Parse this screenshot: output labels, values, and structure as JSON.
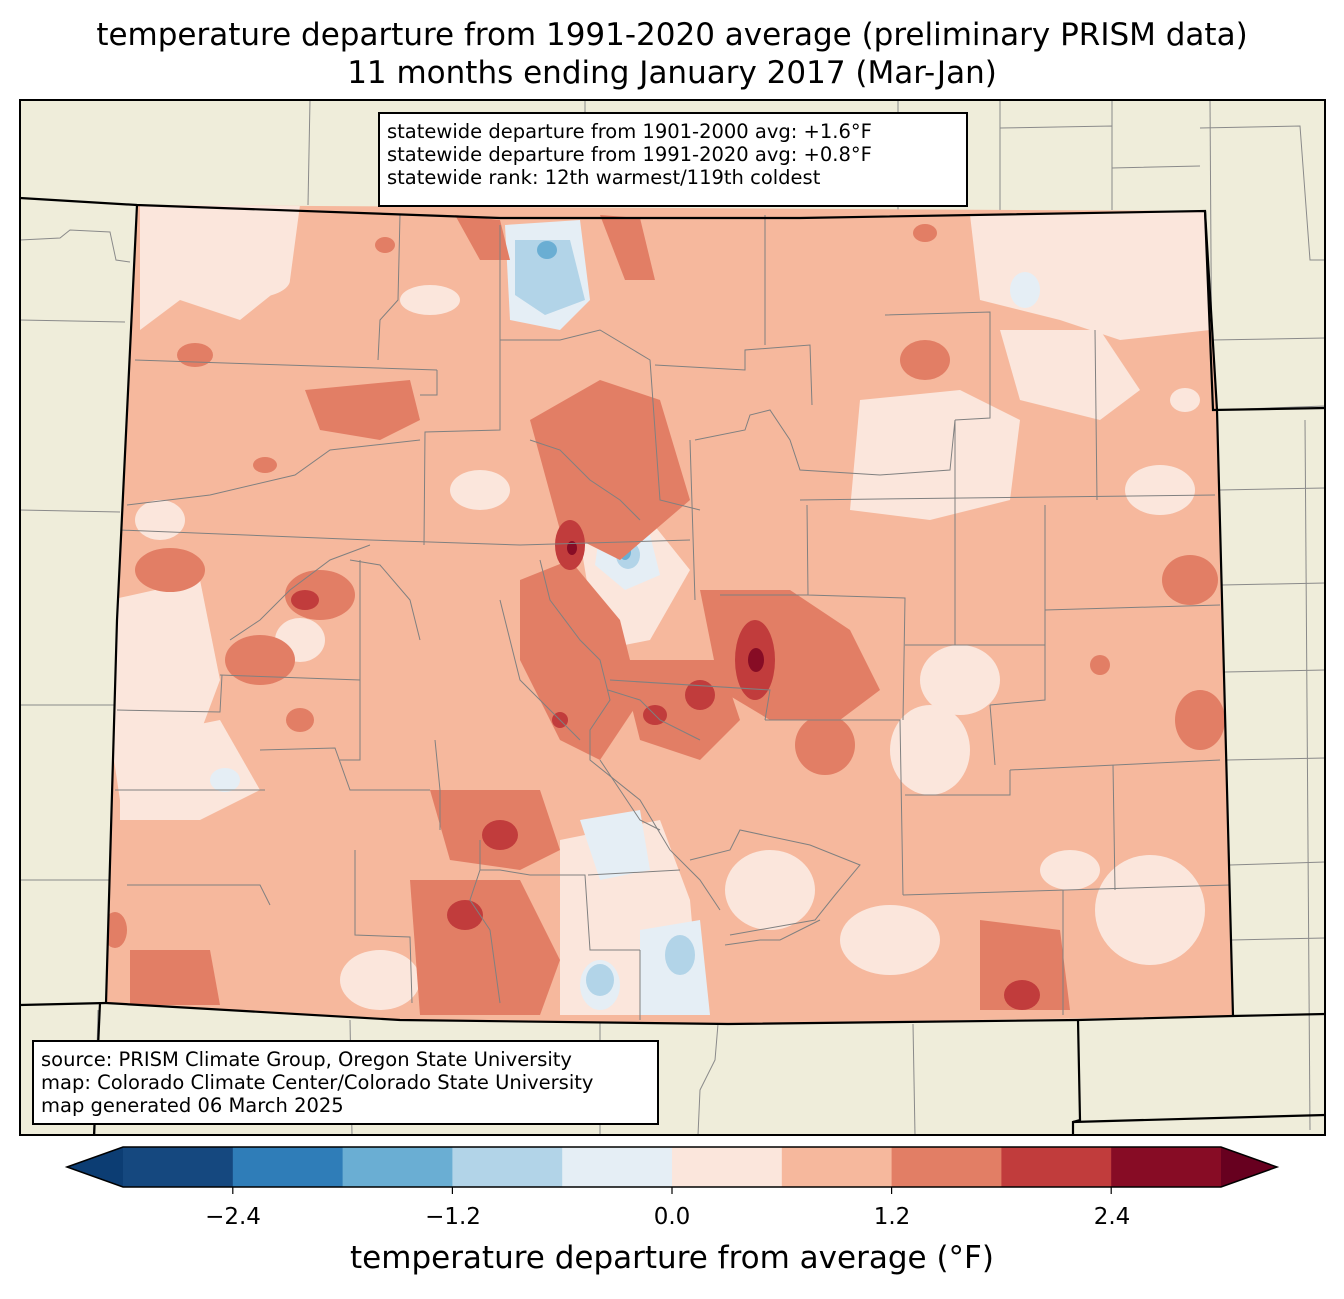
{
  "title": {
    "line1": "temperature departure from 1991-2020 average (preliminary PRISM data)",
    "line2": "11 months ending January 2017 (Mar-Jan)"
  },
  "stats": {
    "line1": "statewide departure from 1901-2000 avg: +1.6°F",
    "line2": "statewide departure from 1991-2020 avg: +0.8°F",
    "line3": "statewide rank: 12th warmest/119th coldest"
  },
  "source": {
    "line1": "source: PRISM Climate Group, Oregon State University",
    "line2": "map: Colorado Climate Center/Colorado State University",
    "line3": "map generated 06 March 2025"
  },
  "colorbar": {
    "label": "temperature departure from average (°F)",
    "ticks": [
      "−2.4",
      "−1.2",
      "0.0",
      "1.2",
      "2.4"
    ],
    "levels": [
      -3.0,
      -2.4,
      -1.8,
      -1.2,
      -0.6,
      0.0,
      0.6,
      1.2,
      1.8,
      2.4,
      3.0
    ],
    "colors": [
      "#0c3d73",
      "#15487f",
      "#2f7db8",
      "#6aaed3",
      "#b2d4e8",
      "#e5eef5",
      "#fbe6dc",
      "#f6b89d",
      "#e27e65",
      "#c13c3c",
      "#870c25",
      "#67001f"
    ],
    "under_color": "#0c3d73",
    "over_color": "#67001f"
  },
  "map": {
    "land_color": "#efedda",
    "dominant_color": "#f6b89d"
  }
}
